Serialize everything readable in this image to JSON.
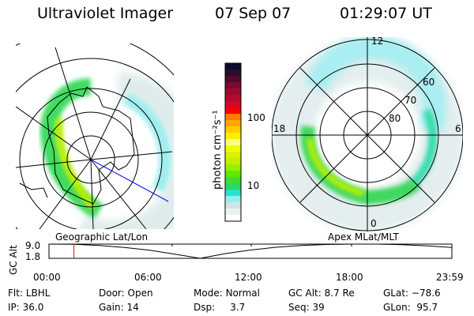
{
  "header": {
    "instrument": "Ultraviolet Imager",
    "date": "07 Sep 07",
    "time": "01:29:07 UT"
  },
  "colorbar": {
    "label": "photon cm⁻²s⁻¹",
    "ticks": [
      "100",
      "10"
    ],
    "colors": [
      "#0b0b2e",
      "#2e0a2c",
      "#520a2e",
      "#7a0a30",
      "#9a0a30",
      "#b40a30",
      "#d0082c",
      "#ff0000",
      "#ff7a00",
      "#ffa800",
      "#ffcc00",
      "#ffee00",
      "#ffff80",
      "#f0ff00",
      "#dcf000",
      "#c0f000",
      "#98f000",
      "#60e800",
      "#40dc30",
      "#28d860",
      "#28e0d0",
      "#90f0f0",
      "#d0e4e4",
      "#e8f4ee",
      "#ffffff"
    ]
  },
  "left_plot": {
    "label": "Geographic Lat/Lon"
  },
  "right_plot": {
    "label": "Apex MLat/MLT",
    "mlt_labels": {
      "top": "12",
      "left": "18",
      "right": "6",
      "bottom": "0"
    },
    "lat_labels": [
      "60",
      "70",
      "80"
    ]
  },
  "timeline": {
    "ylabel": "GC Alt",
    "yticks": [
      "9.0",
      "1.8"
    ],
    "xticks": [
      "00:00",
      "06:00",
      "12:00",
      "18:00",
      "23:59"
    ],
    "current_time_hours": 1.485,
    "marker_color": "#ff0000"
  },
  "chart_data": {
    "type": "line",
    "ylabel": "GC Alt",
    "ylim": [
      1.8,
      9.0
    ],
    "xlim_hours": [
      0,
      23.98
    ],
    "x_hours": [
      0,
      1.5,
      3,
      4.5,
      6,
      7.5,
      9,
      10.5,
      12,
      13.5,
      15,
      16.5,
      18,
      19.5,
      21,
      22.5,
      23.98
    ],
    "values": [
      9.0,
      8.9,
      8.3,
      7.3,
      5.9,
      3.9,
      1.8,
      4.2,
      6.0,
      7.4,
      8.3,
      8.8,
      9.0,
      9.0,
      8.7,
      8.1,
      7.3
    ]
  },
  "info": {
    "row1": [
      {
        "label": "Flt:",
        "value": "LBHL"
      },
      {
        "label": "Door:",
        "value": "Open"
      },
      {
        "label": "Mode:",
        "value": "Normal"
      },
      {
        "label": "GC Alt:",
        "value": "8.7 Re"
      },
      {
        "label": "GLat:",
        "value": "−78.6"
      }
    ],
    "row2": [
      {
        "label": "IP:",
        "value": "36.0"
      },
      {
        "label": "Gain:",
        "value": "14"
      },
      {
        "label": "Dsp:",
        "value": "3.7"
      },
      {
        "label": "Seq:",
        "value": "39"
      },
      {
        "label": "GLon:",
        "value": "95.7"
      }
    ]
  }
}
